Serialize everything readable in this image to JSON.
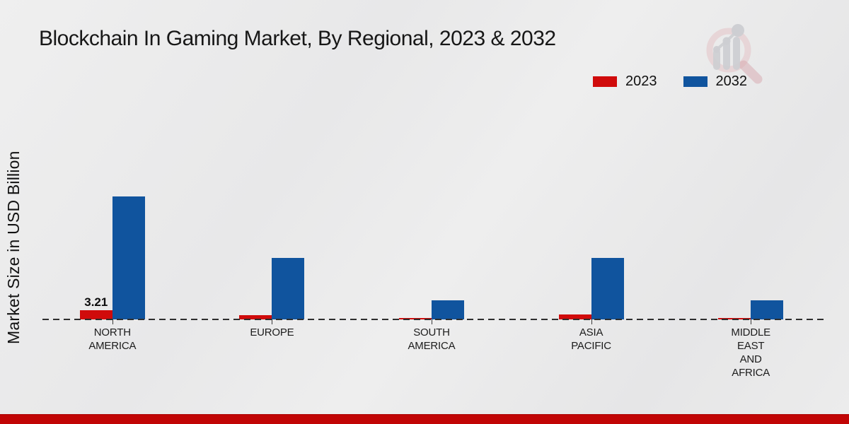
{
  "page": {
    "title": "Blockchain In Gaming Market, By Regional, 2023 & 2032"
  },
  "y_axis": {
    "label": "Market Size in USD Billion"
  },
  "legend": {
    "items": [
      {
        "label": "2023",
        "color": "#d00b0b"
      },
      {
        "label": "2032",
        "color": "#10549e"
      }
    ]
  },
  "branding": {
    "logo_name": "magnifier-bar-chart-watermark-logo",
    "logo_colors": {
      "ring": "#e3c2c6",
      "handle": "#d9a9af",
      "bars": "#cdced2"
    }
  },
  "footer": {
    "stripe_color": "#c10505"
  },
  "chart_data": {
    "type": "bar",
    "title": "Blockchain In Gaming Market, By Regional, 2023 & 2032",
    "xlabel": "",
    "ylabel": "Market Size in USD Billion",
    "unit": "USD Billion",
    "categories": [
      "NORTH AMERICA",
      "EUROPE",
      "SOUTH AMERICA",
      "ASIA PACIFIC",
      "MIDDLE EAST AND AFRICA"
    ],
    "category_label_lines": [
      [
        "NORTH",
        "AMERICA"
      ],
      [
        "EUROPE"
      ],
      [
        "SOUTH",
        "AMERICA"
      ],
      [
        "ASIA",
        "PACIFIC"
      ],
      [
        "MIDDLE",
        "EAST",
        "AND",
        "AFRICA"
      ]
    ],
    "series": [
      {
        "name": "2023",
        "color": "#d00b0b",
        "values": [
          3.21,
          1.5,
          0.5,
          1.7,
          0.5
        ]
      },
      {
        "name": "2032",
        "color": "#10549e",
        "values": [
          43.0,
          21.5,
          6.7,
          21.5,
          6.7
        ]
      }
    ],
    "data_labels": [
      {
        "series": "2023",
        "category": "NORTH AMERICA",
        "text": "3.21"
      }
    ],
    "ylim": [
      0,
      45
    ],
    "grid": false,
    "value_axis_ticks_hidden": true,
    "legend_position": "top-right",
    "baseline_style": "dashed"
  }
}
